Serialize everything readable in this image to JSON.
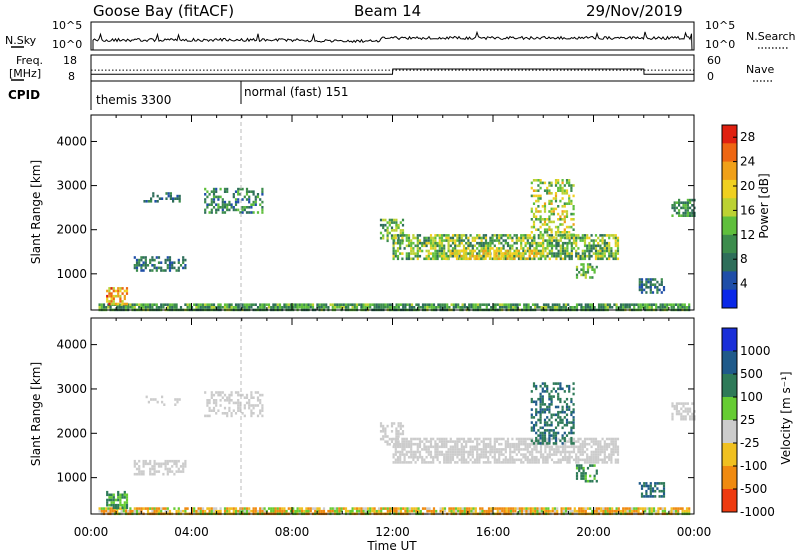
{
  "header": {
    "station": "Goose Bay (fitACF)",
    "beam": "Beam 14",
    "date": "29/Nov/2019"
  },
  "top_panels": {
    "nsky_label": "N.Sky",
    "nsky_ticks": [
      "10^5",
      "10^0"
    ],
    "nsearch_label": "N.Search",
    "nsearch_ticks": [
      "10^5",
      "10^0"
    ],
    "freq_label_1": "Freq.",
    "freq_label_2": "[MHz]",
    "freq_ticks": [
      "18",
      "8"
    ],
    "nave_label": "Nave",
    "nave_ticks": [
      "60",
      "0"
    ],
    "cpid_label": "CPID",
    "cpid_segments": [
      {
        "label": "themis 3300",
        "start_hour": 0
      },
      {
        "label": "normal (fast) 151",
        "start_hour": 6
      }
    ],
    "freq_series": {
      "hours": [
        0,
        0.5,
        12,
        12.01,
        22,
        22.01,
        24
      ],
      "values": [
        10.6,
        10.6,
        10.6,
        12.6,
        12.6,
        10.6,
        10.6
      ]
    },
    "freq_dotted_level": 12.2
  },
  "chart_data": [
    {
      "type": "heatmap",
      "name": "Power",
      "title": "Goose Bay (fitACF)  Beam 14  29/Nov/2019",
      "xlabel": "Time UT",
      "ylabel": "Slant Range [km]",
      "xlim_hours": [
        0,
        24
      ],
      "ylim_km": [
        180,
        4600
      ],
      "x_tick_labels": [
        "00:00",
        "04:00",
        "08:00",
        "12:00",
        "16:00",
        "20:00",
        "00:00"
      ],
      "y_tick_values": [
        1000,
        2000,
        3000,
        4000
      ],
      "colorbar_label": "Power [dB]",
      "colorbar_ticks": [
        4,
        8,
        12,
        16,
        20,
        24,
        28
      ],
      "colorbar_range": [
        0,
        30
      ],
      "colors": [
        "#0a28e8",
        "#1f4ea8",
        "#2e6e5a",
        "#3c8c4c",
        "#5fbf3c",
        "#bcd233",
        "#f0d020",
        "#f0a018",
        "#ee6612",
        "#e02010"
      ],
      "scatter_regions": [
        {
          "t": [
            0.3,
            23.8
          ],
          "r": [
            180,
            330
          ],
          "v": [
            6,
            16
          ],
          "density": 0.85
        },
        {
          "t": [
            0.6,
            1.4
          ],
          "r": [
            300,
            700
          ],
          "v": [
            16,
            28
          ],
          "density": 0.7
        },
        {
          "t": [
            1.7,
            3.8
          ],
          "r": [
            1050,
            1400
          ],
          "v": [
            4,
            12
          ],
          "density": 0.55
        },
        {
          "t": [
            2.0,
            3.5
          ],
          "r": [
            2650,
            2850
          ],
          "v": [
            4,
            10
          ],
          "density": 0.35
        },
        {
          "t": [
            4.5,
            6.8
          ],
          "r": [
            2400,
            2950
          ],
          "v": [
            4,
            14
          ],
          "density": 0.45
        },
        {
          "t": [
            11.5,
            12.4
          ],
          "r": [
            1750,
            2250
          ],
          "v": [
            6,
            18
          ],
          "density": 0.55
        },
        {
          "t": [
            12.0,
            21.0
          ],
          "r": [
            1350,
            1900
          ],
          "v": [
            6,
            20
          ],
          "density": 0.7
        },
        {
          "t": [
            14.0,
            18.0
          ],
          "r": [
            1350,
            1550
          ],
          "v": [
            16,
            24
          ],
          "density": 0.55
        },
        {
          "t": [
            17.5,
            19.2
          ],
          "r": [
            1800,
            3150
          ],
          "v": [
            10,
            22
          ],
          "density": 0.45
        },
        {
          "t": [
            19.3,
            20.1
          ],
          "r": [
            900,
            1300
          ],
          "v": [
            8,
            16
          ],
          "density": 0.55
        },
        {
          "t": [
            21.8,
            22.8
          ],
          "r": [
            600,
            900
          ],
          "v": [
            4,
            10
          ],
          "density": 0.5
        },
        {
          "t": [
            23.1,
            24.0
          ],
          "r": [
            2300,
            2700
          ],
          "v": [
            6,
            14
          ],
          "density": 0.6
        }
      ]
    },
    {
      "type": "heatmap",
      "name": "Velocity",
      "xlabel": "Time UT",
      "ylabel": "Slant Range [km]",
      "xlim_hours": [
        0,
        24
      ],
      "ylim_km": [
        180,
        4600
      ],
      "x_tick_labels": [
        "00:00",
        "04:00",
        "08:00",
        "12:00",
        "16:00",
        "20:00",
        "00:00"
      ],
      "y_tick_values": [
        1000,
        2000,
        3000,
        4000
      ],
      "colorbar_label": "Velocity [m s⁻¹]",
      "colorbar_ticks": [
        "1000",
        "500",
        "100",
        "25",
        "-25",
        "-100",
        "-500",
        "-1000"
      ],
      "colors": [
        "#1a2fd8",
        "#1f5a8a",
        "#2e7a58",
        "#66cc33",
        "#cccccc",
        "#f0c020",
        "#f08a10",
        "#ee3a10"
      ],
      "scatter_regions": [
        {
          "t": [
            0.3,
            23.8
          ],
          "r": [
            180,
            330
          ],
          "v": [
            -200,
            100
          ],
          "density": 0.85
        },
        {
          "t": [
            0.6,
            1.4
          ],
          "r": [
            300,
            700
          ],
          "v": [
            60,
            150
          ],
          "density": 0.7
        },
        {
          "t": [
            1.7,
            3.8
          ],
          "r": [
            1050,
            1400
          ],
          "v": [
            -10,
            10
          ],
          "density": 0.55
        },
        {
          "t": [
            2.0,
            3.5
          ],
          "r": [
            2650,
            2850
          ],
          "v": [
            -10,
            10
          ],
          "density": 0.35
        },
        {
          "t": [
            4.5,
            6.8
          ],
          "r": [
            2400,
            2950
          ],
          "v": [
            -15,
            15
          ],
          "density": 0.45
        },
        {
          "t": [
            11.5,
            12.4
          ],
          "r": [
            1750,
            2250
          ],
          "v": [
            -10,
            10
          ],
          "density": 0.55
        },
        {
          "t": [
            12.0,
            21.0
          ],
          "r": [
            1350,
            1900
          ],
          "v": [
            -15,
            15
          ],
          "density": 0.7
        },
        {
          "t": [
            17.5,
            19.2
          ],
          "r": [
            1800,
            3150
          ],
          "v": [
            150,
            700
          ],
          "density": 0.45
        },
        {
          "t": [
            19.3,
            20.1
          ],
          "r": [
            900,
            1300
          ],
          "v": [
            60,
            200
          ],
          "density": 0.55
        },
        {
          "t": [
            21.8,
            22.8
          ],
          "r": [
            600,
            900
          ],
          "v": [
            200,
            900
          ],
          "density": 0.5
        },
        {
          "t": [
            23.1,
            24.0
          ],
          "r": [
            2300,
            2700
          ],
          "v": [
            -10,
            10
          ],
          "density": 0.6
        }
      ]
    }
  ]
}
